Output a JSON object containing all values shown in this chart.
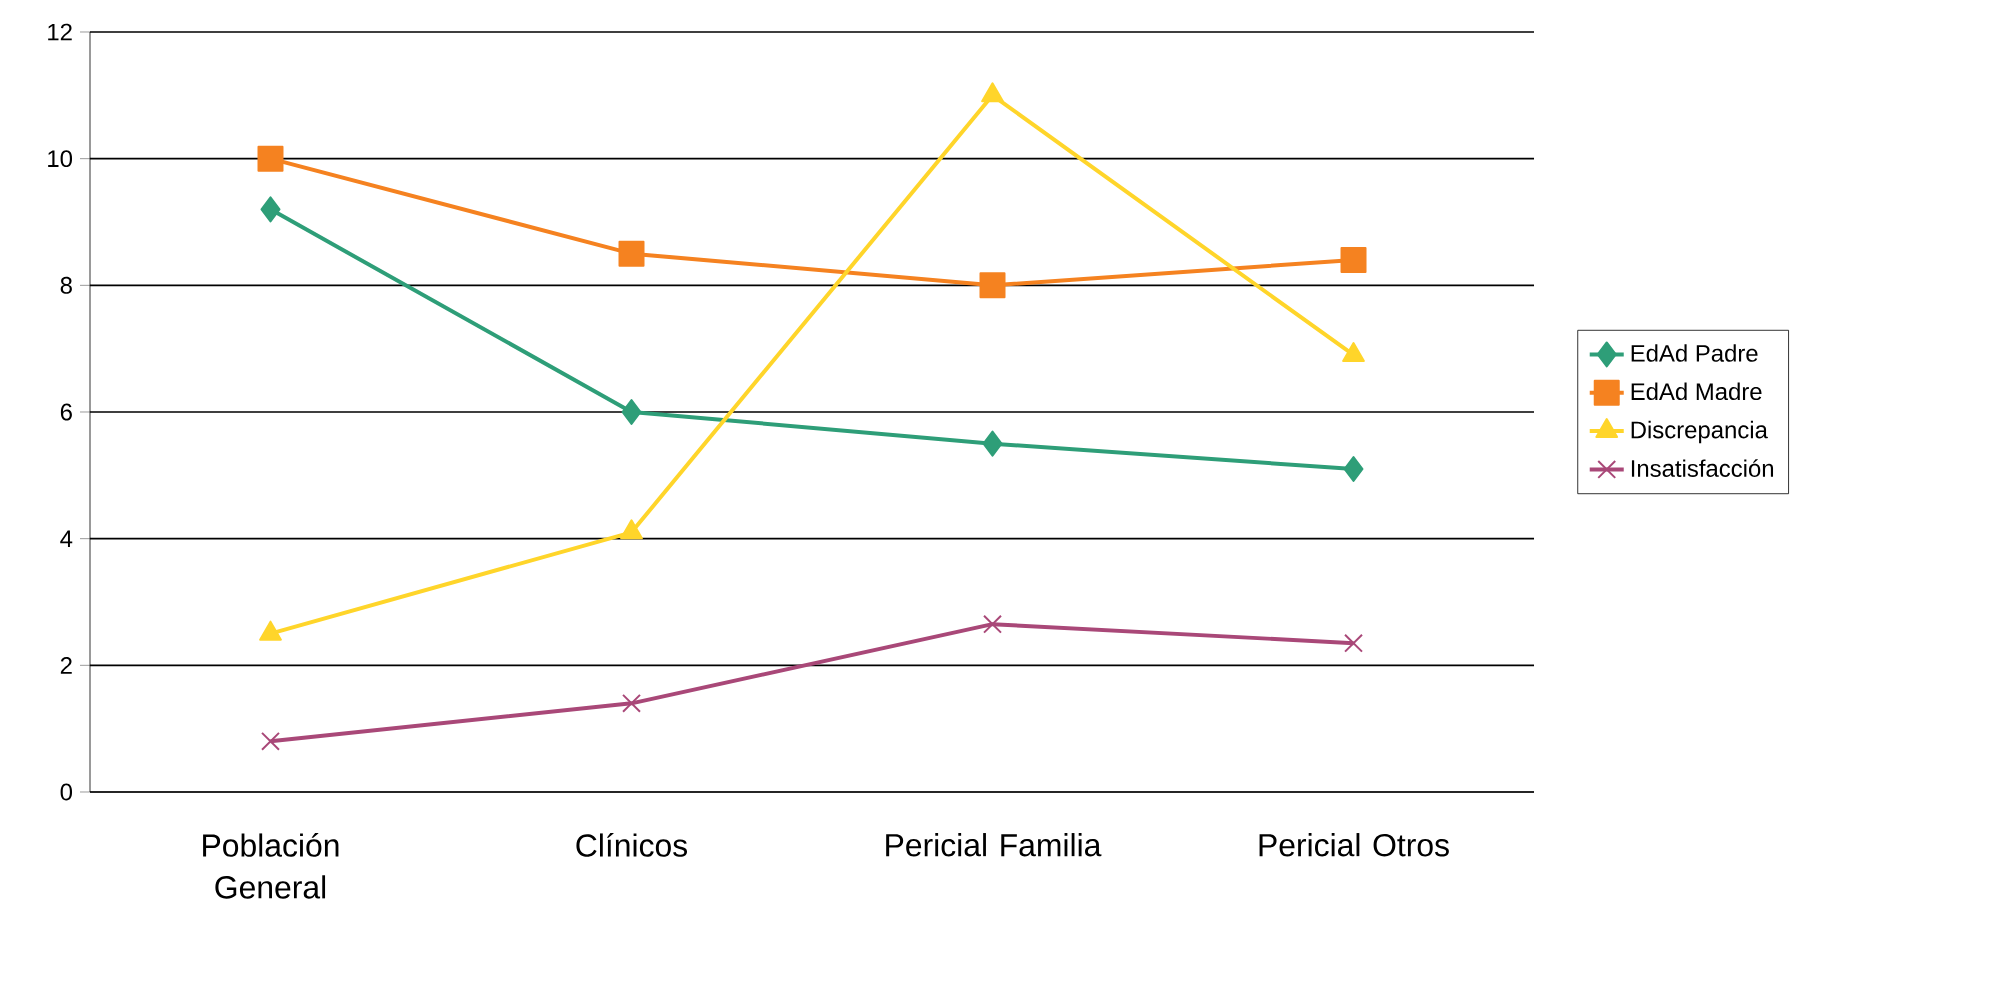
{
  "chart_data": {
    "type": "line",
    "categories": [
      "Población General",
      "Clínicos",
      "Pericial Familia",
      "Pericial Otros"
    ],
    "series": [
      {
        "name": "EdAd Padre",
        "color": "#2e9e78",
        "marker": "diamond",
        "values": [
          9.2,
          6.0,
          5.5,
          5.1
        ]
      },
      {
        "name": "EdAd Madre",
        "color": "#f58220",
        "marker": "square",
        "values": [
          10.0,
          8.5,
          8.0,
          8.4
        ]
      },
      {
        "name": "Discrepancia",
        "color": "#ffd52a",
        "marker": "triangle",
        "values": [
          2.5,
          4.1,
          11.0,
          6.9
        ]
      },
      {
        "name": "Insatisfacción",
        "color": "#a94878",
        "marker": "cross",
        "values": [
          0.8,
          1.4,
          2.65,
          2.35
        ]
      }
    ],
    "ylim": [
      0,
      12
    ],
    "yticks": [
      0,
      2,
      4,
      6,
      8,
      10,
      12
    ],
    "grid": "y",
    "legend": "right"
  }
}
